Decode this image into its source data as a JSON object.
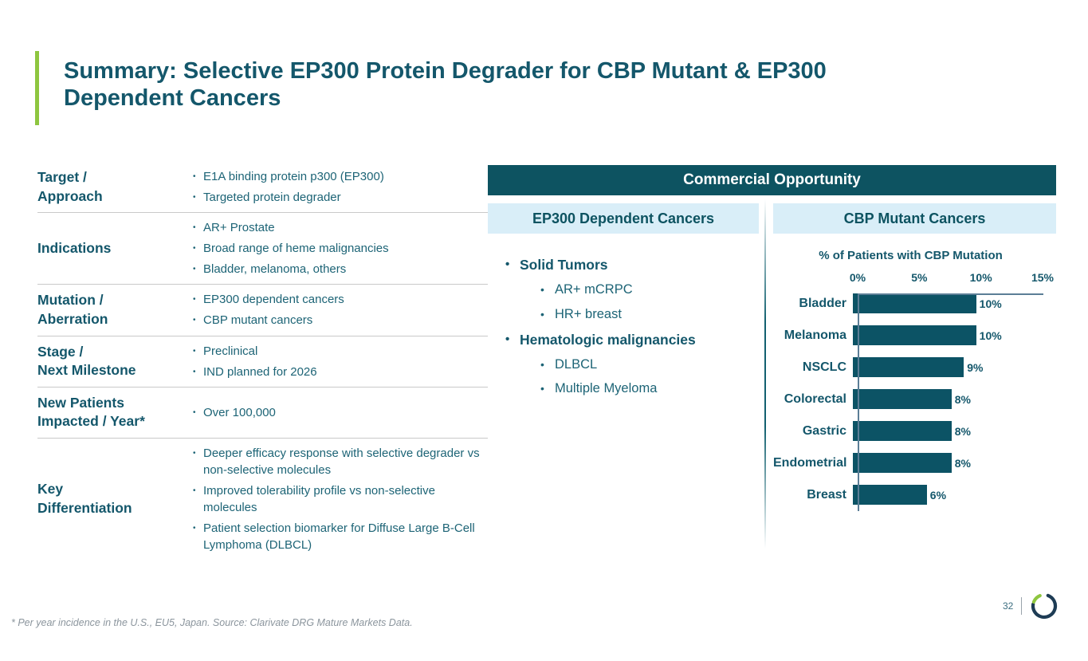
{
  "slide": {
    "title": "Summary: Selective EP300 Protein Degrader for CBP Mutant & EP300\nDependent Cancers",
    "footnote": "* Per year incidence in the U.S., EU5, Japan. Source: Clarivate DRG Mature Markets Data.",
    "page_number": "32",
    "logo_icon": "open-ring-logo"
  },
  "colors": {
    "header_teal": "#0d5361",
    "text_teal_dark": "#14576b",
    "text_teal_body": "#1d6476",
    "light_blue": "#d9eef8",
    "accent_green": "#8ec63f",
    "axis_slate": "#5b7e96"
  },
  "profile_table": {
    "rows": [
      {
        "label": "Target /\nApproach",
        "bullets": [
          "E1A binding protein p300 (EP300)",
          "Targeted protein degrader"
        ]
      },
      {
        "label": "Indications",
        "bullets": [
          "AR+ Prostate",
          "Broad range of heme malignancies",
          "Bladder, melanoma, others"
        ]
      },
      {
        "label": "Mutation /\nAberration",
        "bullets": [
          "EP300 dependent cancers",
          "CBP mutant cancers"
        ]
      },
      {
        "label": "Stage /\nNext Milestone",
        "bullets": [
          "Preclinical",
          "IND planned for 2026"
        ]
      },
      {
        "label": "New Patients\nImpacted / Year*",
        "bullets": [
          "Over 100,000"
        ]
      },
      {
        "label": "Key\nDifferentiation",
        "bullets": [
          "Deeper efficacy response with selective degrader vs non-selective molecules",
          "Improved tolerability profile vs non-selective molecules",
          "Patient selection biomarker for Diffuse Large B-Cell Lymphoma (DLBCL)"
        ]
      }
    ]
  },
  "commercial": {
    "header": "Commercial Opportunity",
    "left_column_title": "EP300 Dependent Cancers",
    "right_column_title": "CBP Mutant Cancers",
    "ep300_list": [
      {
        "label": "Solid Tumors",
        "children": [
          "AR+ mCRPC",
          "HR+ breast"
        ]
      },
      {
        "label": "Hematologic malignancies",
        "children": [
          "DLBCL",
          "Multiple Myeloma"
        ]
      }
    ]
  },
  "chart_data": {
    "type": "bar",
    "orientation": "horizontal",
    "title": "% of Patients with CBP Mutation",
    "categories": [
      "Bladder",
      "Melanoma",
      "NSCLC",
      "Colorectal",
      "Gastric",
      "Endometrial",
      "Breast"
    ],
    "values": [
      10,
      10,
      9,
      8,
      8,
      8,
      6
    ],
    "value_labels": [
      "10%",
      "10%",
      "9%",
      "8%",
      "8%",
      "8%",
      "6%"
    ],
    "x_ticks": [
      "0%",
      "5%",
      "10%",
      "15%"
    ],
    "xlim": [
      0,
      15
    ],
    "bar_color": "#0c5365",
    "grid": false,
    "legend": false
  }
}
